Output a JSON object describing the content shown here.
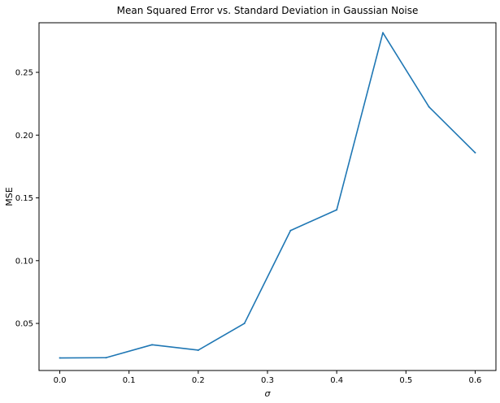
{
  "chart_data": {
    "type": "line",
    "title": "Mean Squared Error vs. Standard Deviation in Gaussian Noise",
    "xlabel": "σ",
    "ylabel": "MSE",
    "xlim": [
      -0.03,
      0.63
    ],
    "ylim": [
      0.0125,
      0.2895
    ],
    "x_ticks": [
      0.0,
      0.1,
      0.2,
      0.3,
      0.4,
      0.5,
      0.6
    ],
    "x_tick_labels": [
      "0.0",
      "0.1",
      "0.2",
      "0.3",
      "0.4",
      "0.5",
      "0.6"
    ],
    "y_ticks": [
      0.05,
      0.1,
      0.15,
      0.2,
      0.25
    ],
    "y_tick_labels": [
      "0.05",
      "0.10",
      "0.15",
      "0.20",
      "0.25"
    ],
    "grid": false,
    "series": [
      {
        "color": "#1f77b4",
        "x": [
          0.0,
          0.0667,
          0.1333,
          0.2,
          0.2667,
          0.3333,
          0.4,
          0.4667,
          0.5333,
          0.6
        ],
        "y": [
          0.0225,
          0.0227,
          0.033,
          0.0287,
          0.05,
          0.124,
          0.1405,
          0.2815,
          0.2225,
          0.186
        ]
      }
    ]
  }
}
